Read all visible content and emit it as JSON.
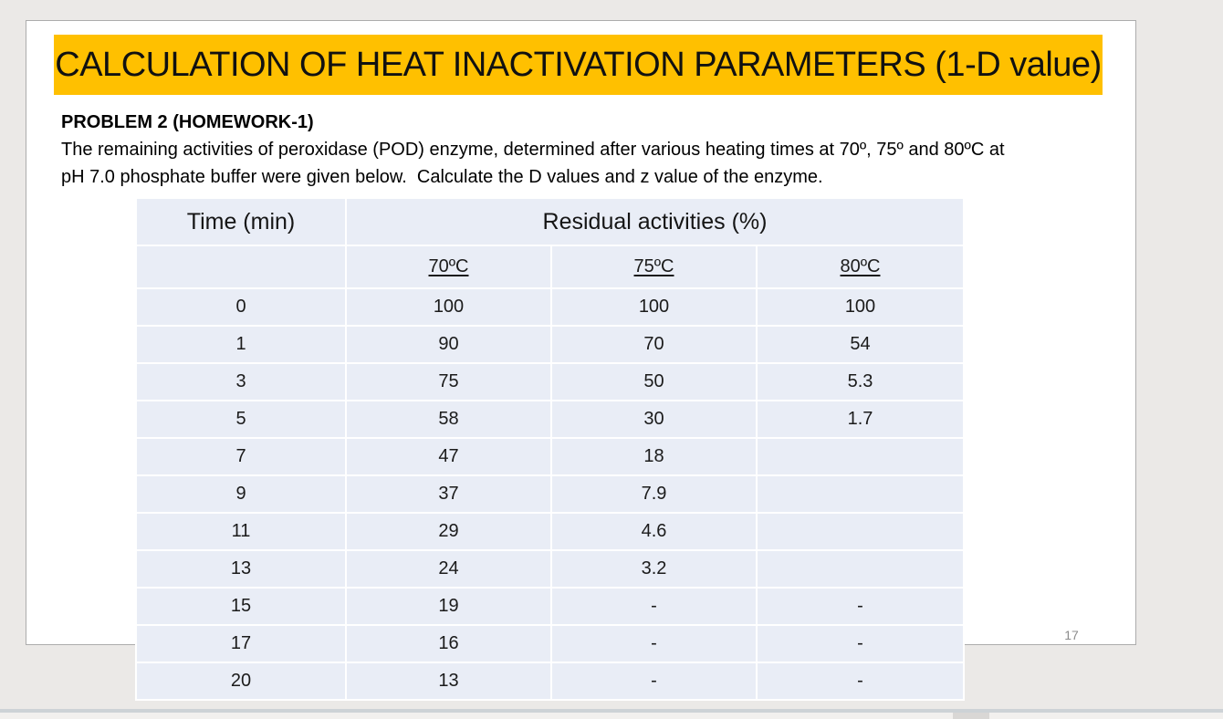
{
  "slide": {
    "title": "CALCULATION OF HEAT INACTIVATION PARAMETERS (1-D value)",
    "problem_heading": "PROBLEM 2 (HOMEWORK-1)",
    "problem_line1": "The remaining activities of peroxidase (POD) enzyme, determined after various heating times at 70º, 75º and 80ºC at",
    "problem_line2": "pH 7.0 phosphate buffer were given below.  Calculate the D values and z value of the enzyme.",
    "page_number": "17"
  },
  "table": {
    "col1_header": "Time (min)",
    "group_header": "Residual activities (%)",
    "temp_headers": [
      "70ºC",
      "75ºC",
      "80ºC"
    ],
    "rows": [
      {
        "time": "0",
        "c70": "100",
        "c75": "100",
        "c80": "100"
      },
      {
        "time": "1",
        "c70": "90",
        "c75": "70",
        "c80": "54"
      },
      {
        "time": "3",
        "c70": "75",
        "c75": "50",
        "c80": "5.3"
      },
      {
        "time": "5",
        "c70": "58",
        "c75": "30",
        "c80": "1.7"
      },
      {
        "time": "7",
        "c70": "47",
        "c75": "18",
        "c80": ""
      },
      {
        "time": "9",
        "c70": "37",
        "c75": "7.9",
        "c80": ""
      },
      {
        "time": "11",
        "c70": "29",
        "c75": "4.6",
        "c80": ""
      },
      {
        "time": "13",
        "c70": "24",
        "c75": "3.2",
        "c80": ""
      },
      {
        "time": "15",
        "c70": "19",
        "c75": "-",
        "c80": "-"
      },
      {
        "time": "17",
        "c70": "16",
        "c75": "-",
        "c80": "-"
      },
      {
        "time": "20",
        "c70": "13",
        "c75": "-",
        "c80": "-"
      }
    ]
  },
  "colors": {
    "banner": "#FFC000",
    "table_bg": "#E9EDF6",
    "canvas_bg": "#EBE9E7",
    "gridline": "#FFFFFF"
  }
}
